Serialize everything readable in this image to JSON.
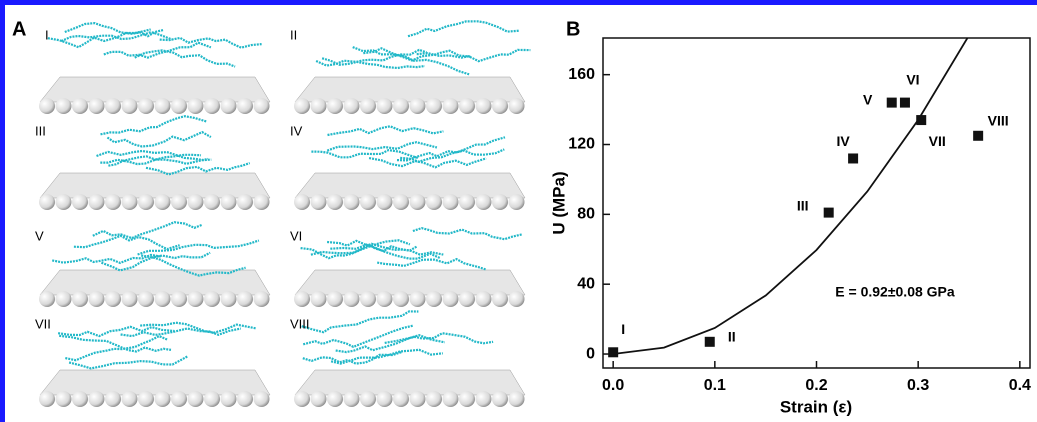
{
  "panel_a": {
    "label": "A",
    "images": [
      "I",
      "II",
      "III",
      "IV",
      "V",
      "VI",
      "VII",
      "VIII"
    ]
  },
  "chart_data": {
    "type": "scatter",
    "panel_label": "B",
    "x_label": "Strain (ε)",
    "y_label": "U (MPa)",
    "annotation": "E = 0.92±0.08 GPa",
    "xlim": [
      -0.01,
      0.41
    ],
    "ylim": [
      -8,
      181
    ],
    "xticks": [
      {
        "value": 0,
        "label": "0.0"
      },
      0.1,
      0.2,
      0.3,
      0.4
    ],
    "yticks": [
      0,
      40,
      80,
      120,
      160
    ],
    "series": [
      {
        "type": "scatter",
        "color": "#111111",
        "x": [
          0.0,
          0.095,
          0.212,
          0.236,
          0.274,
          0.287,
          0.303,
          0.359
        ],
        "values": [
          1,
          7,
          81,
          112,
          144,
          144,
          134,
          125
        ],
        "point_labels": [
          "I",
          "II",
          "III",
          "IV",
          "V",
          "VI",
          "VII",
          "VIII"
        ]
      },
      {
        "type": "line",
        "color": "#111111",
        "x": [
          0,
          0.05,
          0.1,
          0.15,
          0.2,
          0.25,
          0.3,
          0.35
        ],
        "values": [
          0,
          3.7,
          14.9,
          33.5,
          59.6,
          93.1,
          134.1,
          182.5
        ]
      }
    ]
  }
}
